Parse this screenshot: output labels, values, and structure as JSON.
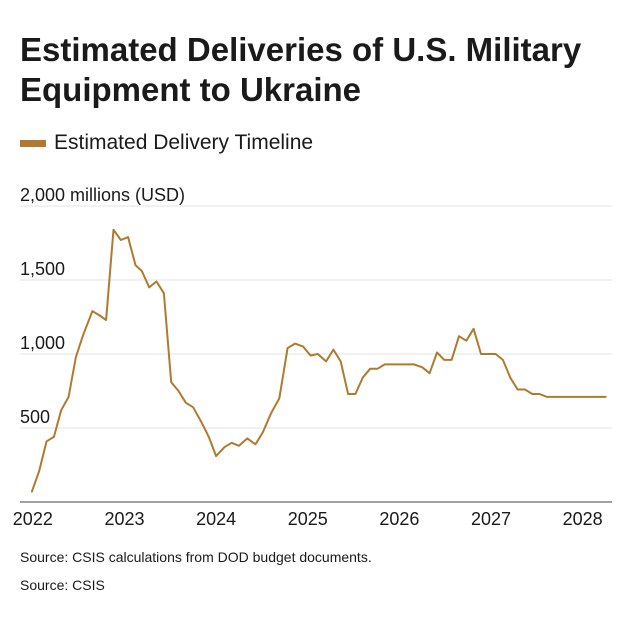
{
  "title": "Estimated Deliveries of U.S. Military Equipment to Ukraine",
  "legend_label": "Estimated Delivery Timeline",
  "footer_note": "Source: CSIS calculations from DOD budget documents.",
  "footer_source": "Source: CSIS",
  "colors": {
    "line": "#b07a2e",
    "grid": "#e3e3e3",
    "axis": "#444444"
  },
  "chart_data": {
    "type": "line",
    "title": "Estimated Deliveries of U.S. Military Equipment to Ukraine",
    "ylabel": "2,000 millions (USD)",
    "ylim": [
      0,
      2000
    ],
    "xlim": [
      2021.86,
      2028.32
    ],
    "y_ticks": [
      {
        "value": 500,
        "label": "500"
      },
      {
        "value": 1000,
        "label": "1,000"
      },
      {
        "value": 1500,
        "label": "1,500"
      },
      {
        "value": 2000,
        "label": "2,000 millions (USD)"
      }
    ],
    "x_ticks": [
      {
        "value": 2022,
        "label": "2022"
      },
      {
        "value": 2023,
        "label": "2023"
      },
      {
        "value": 2024,
        "label": "2024"
      },
      {
        "value": 2025,
        "label": "2025"
      },
      {
        "value": 2026,
        "label": "2026"
      },
      {
        "value": 2027,
        "label": "2027"
      },
      {
        "value": 2028,
        "label": "2028"
      }
    ],
    "grid": true,
    "legend_position": "top-left",
    "series": [
      {
        "name": "Estimated Delivery Timeline",
        "x": [
          2021.99,
          2022.07,
          2022.15,
          2022.23,
          2022.31,
          2022.39,
          2022.47,
          2022.55,
          2022.65,
          2022.73,
          2022.8,
          2022.88,
          2022.96,
          2023.04,
          2023.12,
          2023.19,
          2023.27,
          2023.35,
          2023.43,
          2023.51,
          2023.59,
          2023.67,
          2023.75,
          2023.84,
          2023.92,
          2024.0,
          2024.09,
          2024.17,
          2024.25,
          2024.34,
          2024.43,
          2024.51,
          2024.6,
          2024.69,
          2024.78,
          2024.86,
          2024.95,
          2025.03,
          2025.11,
          2025.2,
          2025.28,
          2025.36,
          2025.44,
          2025.52,
          2025.6,
          2025.68,
          2025.76,
          2025.84,
          2025.92,
          2026.0,
          2026.08,
          2026.16,
          2026.25,
          2026.33,
          2026.41,
          2026.49,
          2026.57,
          2026.65,
          2026.73,
          2026.81,
          2026.89,
          2026.97,
          2027.05,
          2027.13,
          2027.21,
          2027.29,
          2027.37,
          2027.45,
          2027.53,
          2027.61,
          2027.69,
          2027.77,
          2027.85,
          2027.93,
          2028.01,
          2028.09,
          2028.17,
          2028.25
        ],
        "values": [
          70,
          210,
          410,
          440,
          620,
          710,
          980,
          1130,
          1290,
          1260,
          1230,
          1840,
          1770,
          1790,
          1600,
          1560,
          1450,
          1490,
          1410,
          810,
          750,
          670,
          640,
          540,
          440,
          310,
          370,
          400,
          380,
          430,
          390,
          470,
          600,
          700,
          1040,
          1070,
          1050,
          990,
          1000,
          950,
          1030,
          950,
          730,
          730,
          840,
          900,
          900,
          930,
          930,
          930,
          930,
          930,
          910,
          870,
          1010,
          960,
          960,
          1120,
          1090,
          1170,
          1000,
          1000,
          1000,
          960,
          840,
          760,
          760,
          730,
          730,
          710,
          710,
          710,
          710,
          710,
          710,
          710,
          710,
          710
        ]
      }
    ]
  }
}
